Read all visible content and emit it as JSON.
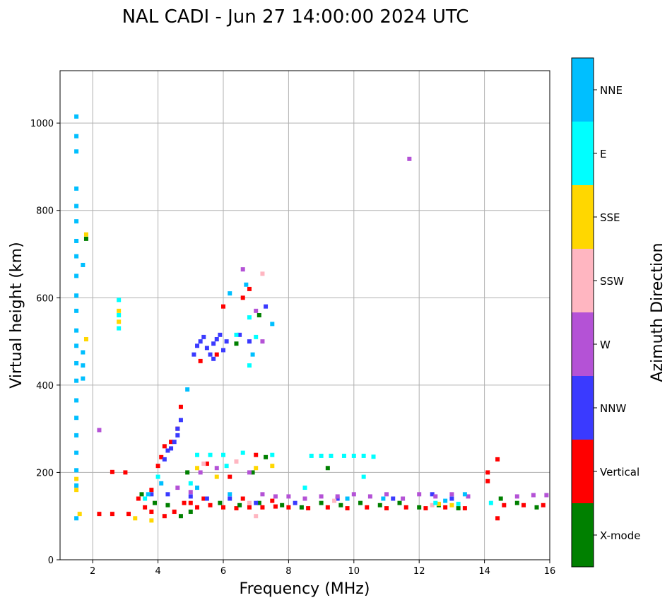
{
  "chart_data": {
    "type": "scatter",
    "title": "NAL CADI - Jun 27 14:00:00 2024 UTC",
    "xlabel": "Frequency (MHz)",
    "ylabel": "Virtual height (km)",
    "xlim": [
      1,
      16
    ],
    "ylim": [
      0,
      1120
    ],
    "xticks": [
      2,
      4,
      6,
      8,
      10,
      12,
      14,
      16
    ],
    "yticks": [
      0,
      200,
      400,
      600,
      800,
      1000
    ],
    "grid": true,
    "colorbar": {
      "label": "Azimuth Direction",
      "categories": [
        {
          "name": "X-mode",
          "color": "#008000"
        },
        {
          "name": "Vertical",
          "color": "#ff0000"
        },
        {
          "name": "NNW",
          "color": "#3a3aff"
        },
        {
          "name": "W",
          "color": "#b452d6"
        },
        {
          "name": "SSW",
          "color": "#ffb6c1"
        },
        {
          "name": "SSE",
          "color": "#ffd700"
        },
        {
          "name": "E",
          "color": "#00ffff"
        },
        {
          "name": "NNE",
          "color": "#00bfff"
        }
      ]
    },
    "series": [
      {
        "name": "Vertical",
        "points": [
          [
            2.6,
            201
          ],
          [
            3.0,
            200
          ],
          [
            3.4,
            140
          ],
          [
            3.6,
            120
          ],
          [
            3.8,
            160
          ],
          [
            4.0,
            215
          ],
          [
            4.1,
            235
          ],
          [
            4.2,
            260
          ],
          [
            4.4,
            270
          ],
          [
            4.6,
            300
          ],
          [
            4.7,
            350
          ],
          [
            4.2,
            100
          ],
          [
            4.8,
            130
          ],
          [
            5.2,
            120
          ],
          [
            5.6,
            125
          ],
          [
            6.0,
            120
          ],
          [
            6.4,
            118
          ],
          [
            6.8,
            120
          ],
          [
            7.2,
            120
          ],
          [
            7.6,
            122
          ],
          [
            8.0,
            120
          ],
          [
            8.6,
            118
          ],
          [
            9.2,
            120
          ],
          [
            9.8,
            118
          ],
          [
            10.4,
            120
          ],
          [
            11.0,
            118
          ],
          [
            11.6,
            120
          ],
          [
            12.2,
            118
          ],
          [
            12.8,
            120
          ],
          [
            13.4,
            118
          ],
          [
            14.1,
            200
          ],
          [
            14.1,
            180
          ],
          [
            14.4,
            230
          ],
          [
            14.4,
            95
          ],
          [
            14.6,
            125
          ],
          [
            15.2,
            125
          ],
          [
            15.8,
            125
          ],
          [
            5.3,
            455
          ],
          [
            5.8,
            470
          ],
          [
            6.0,
            580
          ],
          [
            6.6,
            600
          ],
          [
            6.8,
            620
          ],
          [
            5.5,
            220
          ],
          [
            6.2,
            190
          ],
          [
            7.0,
            240
          ],
          [
            3.8,
            110
          ],
          [
            4.5,
            110
          ],
          [
            5.0,
            130
          ],
          [
            5.4,
            140
          ],
          [
            6.6,
            140
          ],
          [
            7.5,
            135
          ],
          [
            2.2,
            105
          ],
          [
            2.6,
            105
          ],
          [
            3.1,
            105
          ]
        ]
      },
      {
        "name": "X-mode",
        "points": [
          [
            1.8,
            735
          ],
          [
            3.5,
            150
          ],
          [
            3.9,
            130
          ],
          [
            4.3,
            125
          ],
          [
            4.7,
            100
          ],
          [
            5.0,
            110
          ],
          [
            5.9,
            130
          ],
          [
            6.5,
            125
          ],
          [
            7.1,
            130
          ],
          [
            7.8,
            125
          ],
          [
            8.4,
            120
          ],
          [
            9.0,
            130
          ],
          [
            9.6,
            125
          ],
          [
            10.2,
            130
          ],
          [
            10.8,
            125
          ],
          [
            11.4,
            130
          ],
          [
            12.0,
            120
          ],
          [
            12.6,
            125
          ],
          [
            13.2,
            118
          ],
          [
            14.5,
            140
          ],
          [
            15.0,
            130
          ],
          [
            15.6,
            120
          ],
          [
            6.4,
            495
          ],
          [
            7.1,
            560
          ],
          [
            7.3,
            235
          ],
          [
            6.9,
            200
          ],
          [
            4.9,
            200
          ],
          [
            9.2,
            210
          ]
        ]
      },
      {
        "name": "NNW",
        "points": [
          [
            4.2,
            230
          ],
          [
            4.3,
            250
          ],
          [
            4.4,
            255
          ],
          [
            4.5,
            270
          ],
          [
            4.6,
            285
          ],
          [
            4.6,
            300
          ],
          [
            4.7,
            320
          ],
          [
            5.1,
            470
          ],
          [
            5.2,
            490
          ],
          [
            5.3,
            500
          ],
          [
            5.4,
            510
          ],
          [
            5.5,
            485
          ],
          [
            5.6,
            470
          ],
          [
            5.7,
            495
          ],
          [
            5.8,
            505
          ],
          [
            5.9,
            515
          ],
          [
            6.0,
            480
          ],
          [
            6.1,
            500
          ],
          [
            5.7,
            460
          ],
          [
            6.5,
            515
          ],
          [
            6.8,
            500
          ],
          [
            7.3,
            580
          ],
          [
            3.8,
            150
          ],
          [
            4.3,
            150
          ],
          [
            5.0,
            145
          ],
          [
            5.5,
            140
          ],
          [
            6.2,
            140
          ],
          [
            7.0,
            130
          ],
          [
            8.2,
            130
          ],
          [
            9.5,
            140
          ],
          [
            11.2,
            140
          ],
          [
            12.4,
            150
          ],
          [
            13.0,
            140
          ]
        ]
      },
      {
        "name": "W",
        "points": [
          [
            6.6,
            665
          ],
          [
            7.0,
            570
          ],
          [
            7.2,
            500
          ],
          [
            11.7,
            918
          ],
          [
            2.2,
            297
          ],
          [
            5.3,
            200
          ],
          [
            5.8,
            210
          ],
          [
            6.8,
            200
          ],
          [
            7.2,
            150
          ],
          [
            7.6,
            145
          ],
          [
            8.0,
            145
          ],
          [
            8.5,
            140
          ],
          [
            9.0,
            145
          ],
          [
            9.5,
            145
          ],
          [
            10.0,
            150
          ],
          [
            10.5,
            145
          ],
          [
            11.0,
            150
          ],
          [
            11.5,
            140
          ],
          [
            12.0,
            150
          ],
          [
            12.5,
            145
          ],
          [
            13.0,
            150
          ],
          [
            13.5,
            145
          ],
          [
            15.0,
            145
          ],
          [
            15.5,
            148
          ],
          [
            15.9,
            148
          ],
          [
            4.6,
            165
          ],
          [
            5.0,
            155
          ]
        ]
      },
      {
        "name": "SSW",
        "points": [
          [
            7.2,
            655
          ],
          [
            7.0,
            100
          ],
          [
            6.4,
            225
          ],
          [
            12.4,
            125
          ],
          [
            6.8,
            130
          ],
          [
            5.4,
            220
          ],
          [
            9.4,
            135
          ]
        ]
      },
      {
        "name": "SSE",
        "points": [
          [
            1.5,
            160
          ],
          [
            1.5,
            185
          ],
          [
            1.8,
            745
          ],
          [
            1.8,
            505
          ],
          [
            2.8,
            570
          ],
          [
            2.8,
            545
          ],
          [
            1.6,
            105
          ],
          [
            3.3,
            95
          ],
          [
            3.8,
            90
          ],
          [
            5.2,
            210
          ],
          [
            7.0,
            210
          ],
          [
            7.5,
            215
          ],
          [
            5.8,
            190
          ],
          [
            12.6,
            128
          ],
          [
            13.0,
            125
          ]
        ]
      },
      {
        "name": "E",
        "points": [
          [
            2.8,
            595
          ],
          [
            2.8,
            560
          ],
          [
            2.8,
            530
          ],
          [
            4.0,
            190
          ],
          [
            3.6,
            140
          ],
          [
            5.2,
            240
          ],
          [
            5.6,
            240
          ],
          [
            6.1,
            215
          ],
          [
            6.0,
            240
          ],
          [
            6.6,
            245
          ],
          [
            7.5,
            240
          ],
          [
            8.7,
            238
          ],
          [
            9.0,
            238
          ],
          [
            9.3,
            238
          ],
          [
            9.7,
            238
          ],
          [
            10.0,
            238
          ],
          [
            10.3,
            238
          ],
          [
            10.6,
            236
          ],
          [
            6.4,
            515
          ],
          [
            7.0,
            510
          ],
          [
            6.8,
            445
          ],
          [
            6.8,
            555
          ],
          [
            8.5,
            165
          ],
          [
            10.3,
            190
          ],
          [
            12.5,
            130
          ],
          [
            13.2,
            128
          ],
          [
            14.2,
            130
          ],
          [
            5.0,
            175
          ]
        ]
      },
      {
        "name": "NNE",
        "points": [
          [
            1.5,
            1015
          ],
          [
            1.5,
            970
          ],
          [
            1.5,
            935
          ],
          [
            1.5,
            850
          ],
          [
            1.5,
            810
          ],
          [
            1.5,
            775
          ],
          [
            1.5,
            730
          ],
          [
            1.5,
            695
          ],
          [
            1.5,
            650
          ],
          [
            1.5,
            605
          ],
          [
            1.5,
            570
          ],
          [
            1.5,
            525
          ],
          [
            1.5,
            490
          ],
          [
            1.5,
            450
          ],
          [
            1.5,
            410
          ],
          [
            1.5,
            365
          ],
          [
            1.5,
            325
          ],
          [
            1.5,
            285
          ],
          [
            1.5,
            245
          ],
          [
            1.5,
            205
          ],
          [
            1.5,
            170
          ],
          [
            1.5,
            95
          ],
          [
            1.7,
            675
          ],
          [
            1.7,
            475
          ],
          [
            1.7,
            445
          ],
          [
            1.7,
            415
          ],
          [
            6.2,
            610
          ],
          [
            6.7,
            630
          ],
          [
            7.5,
            540
          ],
          [
            6.9,
            470
          ],
          [
            4.9,
            390
          ],
          [
            3.7,
            150
          ],
          [
            4.1,
            175
          ],
          [
            5.2,
            165
          ],
          [
            6.2,
            150
          ],
          [
            9.8,
            140
          ],
          [
            10.9,
            140
          ],
          [
            12.8,
            135
          ],
          [
            13.4,
            150
          ]
        ]
      }
    ]
  }
}
